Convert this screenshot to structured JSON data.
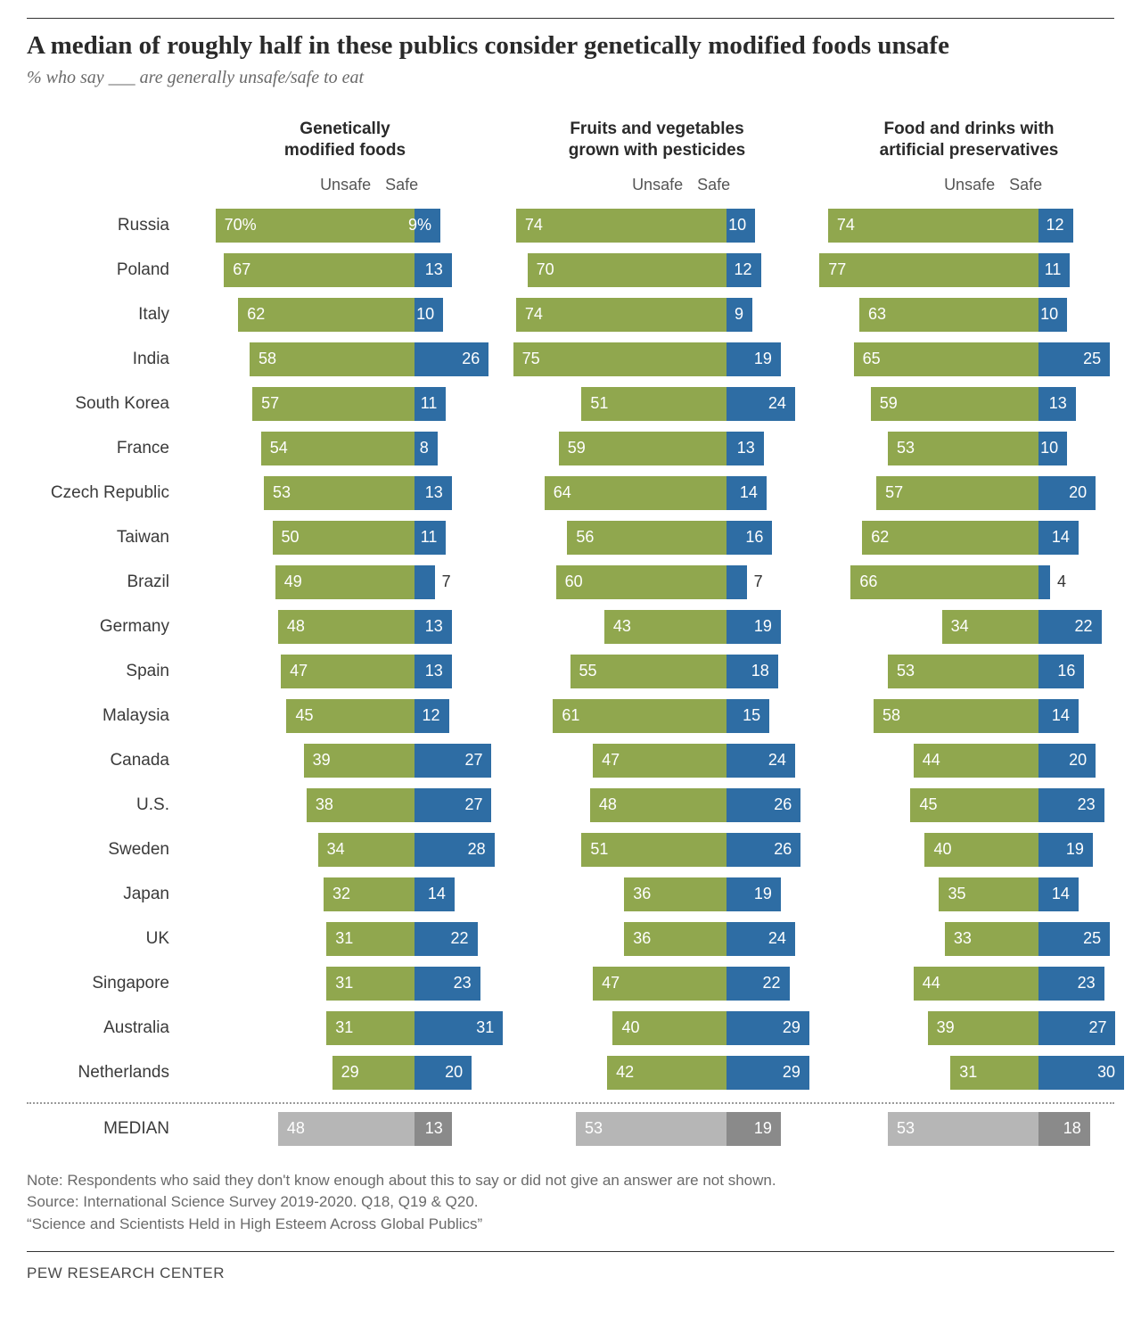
{
  "title": "A median of roughly half in these publics consider genetically modified foods unsafe",
  "subtitle": "% who say ___ are generally unsafe/safe to eat",
  "columns": [
    {
      "label": "Genetically\nmodified foods"
    },
    {
      "label": "Fruits and vegetables\ngrown with pesticides"
    },
    {
      "label": "Food and drinks with\nartificial preservatives"
    }
  ],
  "sublabel_unsafe": "Unsafe",
  "sublabel_safe": "Safe",
  "split_pct": 74,
  "unit": 0.98,
  "colors": {
    "unsafe": "#90a74e",
    "safe": "#2e6da4",
    "median_unsafe": "#b6b6b6",
    "median_safe": "#8a8a8a",
    "text_inside": "#ffffff",
    "text_outside": "#333333"
  },
  "first_row_suffix": "%",
  "rows": [
    {
      "country": "Russia",
      "v": [
        [
          70,
          9
        ],
        [
          74,
          10
        ],
        [
          74,
          12
        ]
      ]
    },
    {
      "country": "Poland",
      "v": [
        [
          67,
          13
        ],
        [
          70,
          12
        ],
        [
          77,
          11
        ]
      ]
    },
    {
      "country": "Italy",
      "v": [
        [
          62,
          10
        ],
        [
          74,
          9
        ],
        [
          63,
          10
        ]
      ]
    },
    {
      "country": "India",
      "v": [
        [
          58,
          26
        ],
        [
          75,
          19
        ],
        [
          65,
          25
        ]
      ]
    },
    {
      "country": "South Korea",
      "v": [
        [
          57,
          11
        ],
        [
          51,
          24
        ],
        [
          59,
          13
        ]
      ]
    },
    {
      "country": "France",
      "v": [
        [
          54,
          8
        ],
        [
          59,
          13
        ],
        [
          53,
          10
        ]
      ]
    },
    {
      "country": "Czech Republic",
      "v": [
        [
          53,
          13
        ],
        [
          64,
          14
        ],
        [
          57,
          20
        ]
      ]
    },
    {
      "country": "Taiwan",
      "v": [
        [
          50,
          11
        ],
        [
          56,
          16
        ],
        [
          62,
          14
        ]
      ]
    },
    {
      "country": "Brazil",
      "v": [
        [
          49,
          7
        ],
        [
          60,
          7
        ],
        [
          66,
          4
        ]
      ]
    },
    {
      "country": "Germany",
      "v": [
        [
          48,
          13
        ],
        [
          43,
          19
        ],
        [
          34,
          22
        ]
      ]
    },
    {
      "country": "Spain",
      "v": [
        [
          47,
          13
        ],
        [
          55,
          18
        ],
        [
          53,
          16
        ]
      ]
    },
    {
      "country": "Malaysia",
      "v": [
        [
          45,
          12
        ],
        [
          61,
          15
        ],
        [
          58,
          14
        ]
      ]
    },
    {
      "country": "Canada",
      "v": [
        [
          39,
          27
        ],
        [
          47,
          24
        ],
        [
          44,
          20
        ]
      ]
    },
    {
      "country": "U.S.",
      "v": [
        [
          38,
          27
        ],
        [
          48,
          26
        ],
        [
          45,
          23
        ]
      ]
    },
    {
      "country": "Sweden",
      "v": [
        [
          34,
          28
        ],
        [
          51,
          26
        ],
        [
          40,
          19
        ]
      ]
    },
    {
      "country": "Japan",
      "v": [
        [
          32,
          14
        ],
        [
          36,
          19
        ],
        [
          35,
          14
        ]
      ]
    },
    {
      "country": "UK",
      "v": [
        [
          31,
          22
        ],
        [
          36,
          24
        ],
        [
          33,
          25
        ]
      ]
    },
    {
      "country": "Singapore",
      "v": [
        [
          31,
          23
        ],
        [
          47,
          22
        ],
        [
          44,
          23
        ]
      ]
    },
    {
      "country": "Australia",
      "v": [
        [
          31,
          31
        ],
        [
          40,
          29
        ],
        [
          39,
          27
        ]
      ]
    },
    {
      "country": "Netherlands",
      "v": [
        [
          29,
          20
        ],
        [
          42,
          29
        ],
        [
          31,
          30
        ]
      ]
    }
  ],
  "median": {
    "label": "MEDIAN",
    "v": [
      [
        48,
        13
      ],
      [
        53,
        19
      ],
      [
        53,
        18
      ]
    ]
  },
  "note_line1": "Note: Respondents who said they don't know enough about this to say or did not give an answer are not shown.",
  "note_line2": "Source: International Science Survey 2019-2020. Q18, Q19 & Q20.",
  "note_line3": "“Science and Scientists Held in High Esteem Across Global Publics”",
  "footer": "PEW RESEARCH CENTER"
}
